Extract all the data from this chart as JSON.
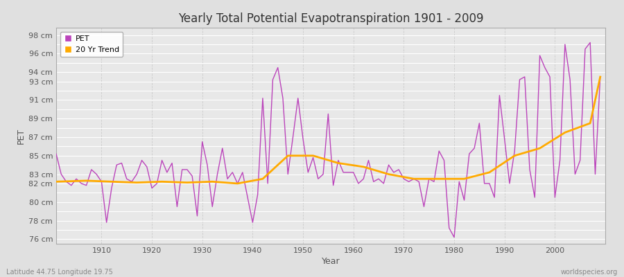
{
  "title": "Yearly Total Potential Evapotranspiration 1901 - 2009",
  "xlabel": "Year",
  "ylabel": "PET",
  "subtitle_left": "Latitude 44.75 Longitude 19.75",
  "subtitle_right": "worldspecies.org",
  "pet_color": "#bb44bb",
  "trend_color": "#ffaa00",
  "background_color": "#e0e0e0",
  "plot_bg_color": "#e8e8e8",
  "xlim": [
    1901,
    2010
  ],
  "ylim": [
    75.5,
    98.8
  ],
  "years": [
    1901,
    1902,
    1903,
    1904,
    1905,
    1906,
    1907,
    1908,
    1909,
    1910,
    1911,
    1912,
    1913,
    1914,
    1915,
    1916,
    1917,
    1918,
    1919,
    1920,
    1921,
    1922,
    1923,
    1924,
    1925,
    1926,
    1927,
    1928,
    1929,
    1930,
    1931,
    1932,
    1933,
    1934,
    1935,
    1936,
    1937,
    1938,
    1939,
    1940,
    1941,
    1942,
    1943,
    1944,
    1945,
    1946,
    1947,
    1948,
    1949,
    1950,
    1951,
    1952,
    1953,
    1954,
    1955,
    1956,
    1957,
    1958,
    1959,
    1960,
    1961,
    1962,
    1963,
    1964,
    1965,
    1966,
    1967,
    1968,
    1969,
    1970,
    1971,
    1972,
    1973,
    1974,
    1975,
    1976,
    1977,
    1978,
    1979,
    1980,
    1981,
    1982,
    1983,
    1984,
    1985,
    1986,
    1987,
    1988,
    1989,
    1990,
    1991,
    1992,
    1993,
    1994,
    1995,
    1996,
    1997,
    1998,
    1999,
    2000,
    2001,
    2002,
    2003,
    2004,
    2005,
    2006,
    2007,
    2008,
    2009
  ],
  "pet_values": [
    85.2,
    83.0,
    82.2,
    81.8,
    82.5,
    82.0,
    81.8,
    83.5,
    83.0,
    82.2,
    77.8,
    81.5,
    84.0,
    84.2,
    82.5,
    82.2,
    83.0,
    84.5,
    83.8,
    81.5,
    82.0,
    84.5,
    83.2,
    84.2,
    79.5,
    83.5,
    83.5,
    82.8,
    78.5,
    86.5,
    84.0,
    79.5,
    83.0,
    85.8,
    82.5,
    83.2,
    82.0,
    83.2,
    80.5,
    77.8,
    80.8,
    91.2,
    82.0,
    93.2,
    94.5,
    91.2,
    83.0,
    87.0,
    91.2,
    86.8,
    83.2,
    84.8,
    82.5,
    83.0,
    89.5,
    81.8,
    84.5,
    83.2,
    83.2,
    83.2,
    82.0,
    82.5,
    84.5,
    82.2,
    82.5,
    82.0,
    84.0,
    83.2,
    83.5,
    82.5,
    82.2,
    82.5,
    82.2,
    79.5,
    82.5,
    82.2,
    85.5,
    84.5,
    77.2,
    76.2,
    82.2,
    80.2,
    85.2,
    85.8,
    88.5,
    82.0,
    82.0,
    80.5,
    91.5,
    86.8,
    82.0,
    85.5,
    93.2,
    93.5,
    83.5,
    80.5,
    95.8,
    94.5,
    93.5,
    80.5,
    84.5,
    97.0,
    93.2,
    83.0,
    84.5,
    96.5,
    97.2,
    83.0,
    93.5
  ],
  "trend_years": [
    1901,
    1907,
    1912,
    1917,
    1922,
    1927,
    1932,
    1937,
    1942,
    1947,
    1952,
    1957,
    1962,
    1967,
    1972,
    1977,
    1982,
    1987,
    1992,
    1997,
    2002,
    2007,
    2009
  ],
  "trend_values": [
    82.2,
    82.3,
    82.2,
    82.1,
    82.2,
    82.1,
    82.2,
    82.0,
    82.5,
    85.0,
    85.0,
    84.2,
    83.8,
    83.0,
    82.5,
    82.5,
    82.5,
    83.2,
    85.0,
    85.8,
    87.5,
    88.5,
    93.5
  ],
  "ytick_labeled": [
    76,
    78,
    80,
    82,
    83,
    85,
    87,
    89,
    91,
    93,
    94,
    96,
    98
  ],
  "xtick_major": [
    1910,
    1920,
    1930,
    1940,
    1950,
    1960,
    1970,
    1980,
    1990,
    2000
  ]
}
